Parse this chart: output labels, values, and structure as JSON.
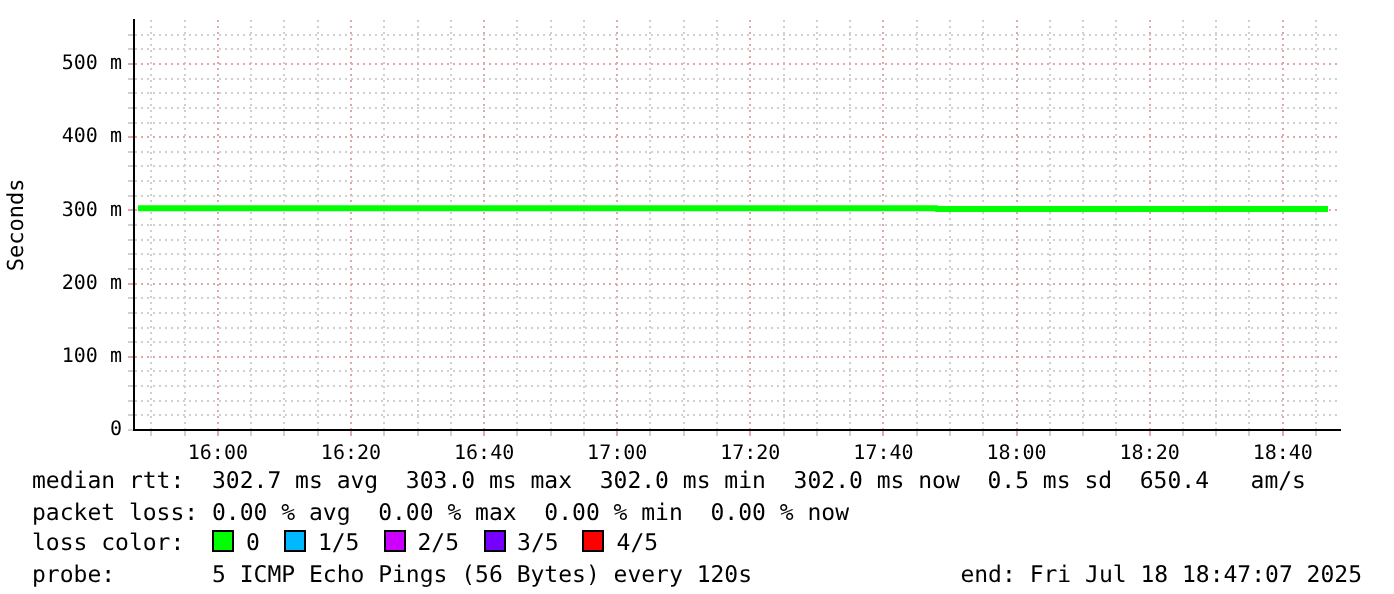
{
  "chart_data": {
    "type": "line",
    "ylabel": "Seconds",
    "legend_title": "loss color:",
    "legend": "bottom left",
    "grid": true,
    "marker": "none",
    "line_style": "solid",
    "xlim": [
      15.79,
      18.81
    ],
    "ylim": [
      0,
      560
    ],
    "xticks": [
      {
        "value": 15.8333,
        "label": null
      },
      {
        "value": 15.9167,
        "label": null
      },
      {
        "value": 16,
        "label": "16:00"
      },
      {
        "value": 16.0833,
        "label": null
      },
      {
        "value": 16.1667,
        "label": null
      },
      {
        "value": 16.25,
        "label": null
      },
      {
        "value": 16.3333,
        "label": "16:20"
      },
      {
        "value": 16.4167,
        "label": null
      },
      {
        "value": 16.5,
        "label": null
      },
      {
        "value": 16.5833,
        "label": null
      },
      {
        "value": 16.6667,
        "label": "16:40"
      },
      {
        "value": 16.75,
        "label": null
      },
      {
        "value": 16.8333,
        "label": null
      },
      {
        "value": 16.9167,
        "label": null
      },
      {
        "value": 17,
        "label": "17:00"
      },
      {
        "value": 17.0833,
        "label": null
      },
      {
        "value": 17.1667,
        "label": null
      },
      {
        "value": 17.25,
        "label": null
      },
      {
        "value": 17.3333,
        "label": "17:20"
      },
      {
        "value": 17.4167,
        "label": null
      },
      {
        "value": 17.5,
        "label": null
      },
      {
        "value": 17.5833,
        "label": null
      },
      {
        "value": 17.6667,
        "label": "17:40"
      },
      {
        "value": 17.75,
        "label": null
      },
      {
        "value": 17.8333,
        "label": null
      },
      {
        "value": 17.9167,
        "label": null
      },
      {
        "value": 18,
        "label": "18:00"
      },
      {
        "value": 18.0833,
        "label": null
      },
      {
        "value": 18.1667,
        "label": null
      },
      {
        "value": 18.25,
        "label": null
      },
      {
        "value": 18.3333,
        "label": "18:20"
      },
      {
        "value": 18.4167,
        "label": null
      },
      {
        "value": 18.5,
        "label": null
      },
      {
        "value": 18.5833,
        "label": null
      },
      {
        "value": 18.6667,
        "label": "18:40"
      },
      {
        "value": 18.75,
        "label": null
      }
    ],
    "yticks": [
      0,
      {
        "value": 20,
        "label": null
      },
      {
        "value": 40,
        "label": null
      },
      {
        "value": 60,
        "label": null
      },
      {
        "value": 80,
        "label": null
      },
      {
        "value": 100,
        "label": "100 m"
      },
      {
        "value": 120,
        "label": null
      },
      {
        "value": 140,
        "label": null
      },
      {
        "value": 160,
        "label": null
      },
      {
        "value": 180,
        "label": null
      },
      {
        "value": 200,
        "label": "200 m"
      },
      {
        "value": 220,
        "label": null
      },
      {
        "value": 240,
        "label": null
      },
      {
        "value": 260,
        "label": null
      },
      {
        "value": 280,
        "label": null
      },
      {
        "value": 300,
        "label": "300 m"
      },
      {
        "value": 320,
        "label": null
      },
      {
        "value": 340,
        "label": null
      },
      {
        "value": 360,
        "label": null
      },
      {
        "value": 380,
        "label": null
      },
      {
        "value": 400,
        "label": "400 m"
      },
      {
        "value": 420,
        "label": null
      },
      {
        "value": 440,
        "label": null
      },
      {
        "value": 460,
        "label": null
      },
      {
        "value": 480,
        "label": null
      },
      {
        "value": 500,
        "label": "500 m"
      },
      {
        "value": 520,
        "label": null
      },
      {
        "value": 540,
        "label": null
      }
    ],
    "series": [
      {
        "name": "0",
        "color": "#00ff00",
        "x": [
          15.8,
          17.8,
          17.8,
          18.78
        ],
        "values": [
          303,
          303,
          302,
          302
        ]
      },
      {
        "name": "1/5",
        "color": "#00b8ff"
      },
      {
        "name": "2/5",
        "color": "#cc00ff"
      },
      {
        "name": "3/5",
        "color": "#7600ff"
      },
      {
        "name": "4/5",
        "color": "#ff0000"
      }
    ],
    "annotations": [
      "median rtt:  302.7 ms avg  303.0 ms max  302.0 ms min  302.0 ms now  0.5 ms sd  650.4   am/s",
      "packet loss: 0.00 % avg  0.00 % max  0.00 % min  0.00 % now",
      "probe:       5 ICMP Echo Pings (56 Bytes) every 120s",
      "end: Fri Jul 18 18:47:07 2025"
    ]
  }
}
